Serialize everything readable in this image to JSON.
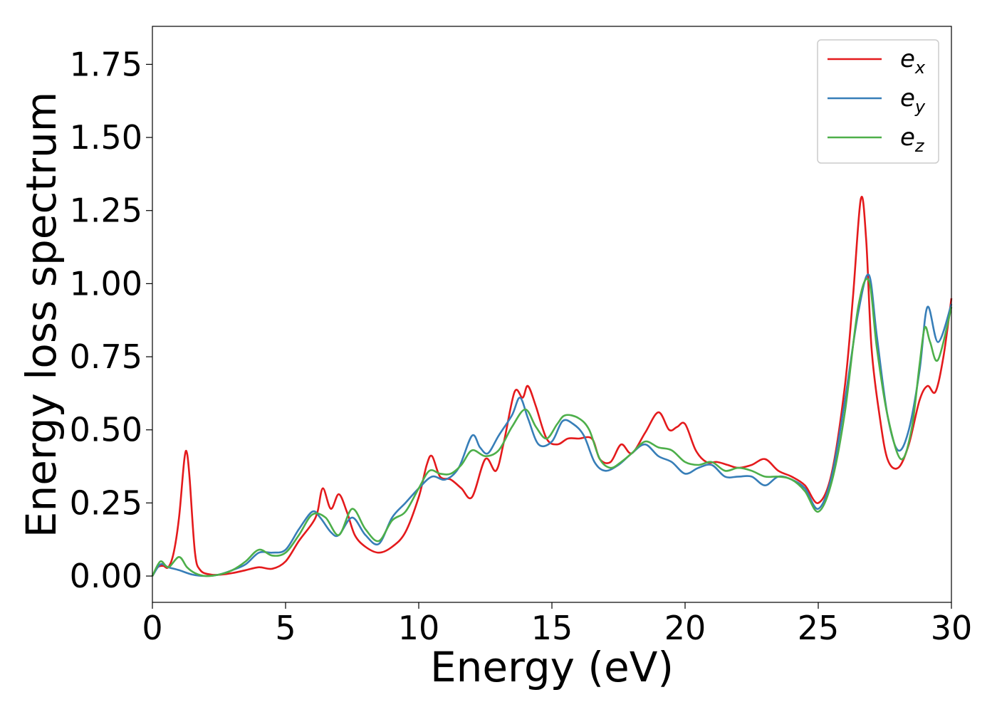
{
  "chart_data": {
    "type": "line",
    "title": "",
    "xlabel": "Energy (eV)",
    "ylabel": "Energy loss spectrum",
    "xlim": [
      0,
      30
    ],
    "ylim": [
      -0.09,
      1.88
    ],
    "x_ticks": [
      "0",
      "5",
      "10",
      "15",
      "20",
      "25",
      "30"
    ],
    "y_ticks": [
      "0.00",
      "0.25",
      "0.50",
      "0.75",
      "1.00",
      "1.25",
      "1.50",
      "1.75"
    ],
    "grid": false,
    "legend_position": "top-right",
    "series": [
      {
        "name": "e_x",
        "legend_base": "e",
        "legend_sub": "x",
        "color": "#e41a1c",
        "points": [
          [
            0,
            0.0
          ],
          [
            0.2,
            0.03
          ],
          [
            0.4,
            0.035
          ],
          [
            0.6,
            0.03
          ],
          [
            0.8,
            0.08
          ],
          [
            1.0,
            0.2
          ],
          [
            1.2,
            0.4
          ],
          [
            1.3,
            0.42
          ],
          [
            1.4,
            0.33
          ],
          [
            1.6,
            0.08
          ],
          [
            1.8,
            0.02
          ],
          [
            2.2,
            0.005
          ],
          [
            2.6,
            0.005
          ],
          [
            3.0,
            0.01
          ],
          [
            3.5,
            0.02
          ],
          [
            4.0,
            0.03
          ],
          [
            4.5,
            0.025
          ],
          [
            5.0,
            0.05
          ],
          [
            5.5,
            0.12
          ],
          [
            6.0,
            0.18
          ],
          [
            6.2,
            0.22
          ],
          [
            6.4,
            0.3
          ],
          [
            6.7,
            0.23
          ],
          [
            7.0,
            0.28
          ],
          [
            7.3,
            0.22
          ],
          [
            7.6,
            0.14
          ],
          [
            8.0,
            0.1
          ],
          [
            8.5,
            0.08
          ],
          [
            9.0,
            0.1
          ],
          [
            9.5,
            0.15
          ],
          [
            10.0,
            0.27
          ],
          [
            10.3,
            0.38
          ],
          [
            10.5,
            0.41
          ],
          [
            10.8,
            0.34
          ],
          [
            11.2,
            0.33
          ],
          [
            11.6,
            0.3
          ],
          [
            12.0,
            0.27
          ],
          [
            12.5,
            0.4
          ],
          [
            12.9,
            0.36
          ],
          [
            13.2,
            0.46
          ],
          [
            13.6,
            0.63
          ],
          [
            13.9,
            0.61
          ],
          [
            14.1,
            0.65
          ],
          [
            14.4,
            0.58
          ],
          [
            14.8,
            0.47
          ],
          [
            15.2,
            0.45
          ],
          [
            15.6,
            0.47
          ],
          [
            16.0,
            0.47
          ],
          [
            16.5,
            0.47
          ],
          [
            16.8,
            0.4
          ],
          [
            17.2,
            0.39
          ],
          [
            17.6,
            0.45
          ],
          [
            18.0,
            0.42
          ],
          [
            18.5,
            0.49
          ],
          [
            19.0,
            0.56
          ],
          [
            19.4,
            0.5
          ],
          [
            19.7,
            0.51
          ],
          [
            20.0,
            0.52
          ],
          [
            20.4,
            0.43
          ],
          [
            20.8,
            0.39
          ],
          [
            21.2,
            0.39
          ],
          [
            21.6,
            0.38
          ],
          [
            22.0,
            0.37
          ],
          [
            22.5,
            0.38
          ],
          [
            23.0,
            0.4
          ],
          [
            23.5,
            0.36
          ],
          [
            24.0,
            0.34
          ],
          [
            24.5,
            0.31
          ],
          [
            25.0,
            0.25
          ],
          [
            25.5,
            0.35
          ],
          [
            26.0,
            0.65
          ],
          [
            26.3,
            0.95
          ],
          [
            26.6,
            1.29
          ],
          [
            26.8,
            1.15
          ],
          [
            27.0,
            0.78
          ],
          [
            27.3,
            0.55
          ],
          [
            27.6,
            0.4
          ],
          [
            28.0,
            0.37
          ],
          [
            28.4,
            0.45
          ],
          [
            28.8,
            0.6
          ],
          [
            29.1,
            0.65
          ],
          [
            29.4,
            0.63
          ],
          [
            29.7,
            0.75
          ],
          [
            30.0,
            0.95
          ]
        ]
      },
      {
        "name": "e_y",
        "legend_base": "e",
        "legend_sub": "y",
        "color": "#377eb8",
        "points": [
          [
            0,
            0.0
          ],
          [
            0.3,
            0.04
          ],
          [
            0.6,
            0.03
          ],
          [
            1.0,
            0.02
          ],
          [
            1.5,
            0.005
          ],
          [
            2.0,
            0.0
          ],
          [
            2.5,
            0.005
          ],
          [
            3.0,
            0.02
          ],
          [
            3.5,
            0.04
          ],
          [
            4.0,
            0.08
          ],
          [
            4.5,
            0.08
          ],
          [
            5.0,
            0.09
          ],
          [
            5.5,
            0.16
          ],
          [
            6.0,
            0.22
          ],
          [
            6.3,
            0.2
          ],
          [
            6.7,
            0.15
          ],
          [
            7.0,
            0.14
          ],
          [
            7.5,
            0.2
          ],
          [
            8.0,
            0.14
          ],
          [
            8.5,
            0.11
          ],
          [
            9.0,
            0.2
          ],
          [
            9.5,
            0.25
          ],
          [
            10.0,
            0.3
          ],
          [
            10.5,
            0.34
          ],
          [
            11.0,
            0.33
          ],
          [
            11.5,
            0.37
          ],
          [
            12.0,
            0.48
          ],
          [
            12.3,
            0.44
          ],
          [
            12.6,
            0.42
          ],
          [
            13.0,
            0.48
          ],
          [
            13.5,
            0.55
          ],
          [
            13.8,
            0.61
          ],
          [
            14.1,
            0.54
          ],
          [
            14.5,
            0.45
          ],
          [
            15.0,
            0.46
          ],
          [
            15.4,
            0.53
          ],
          [
            15.8,
            0.52
          ],
          [
            16.2,
            0.48
          ],
          [
            16.6,
            0.39
          ],
          [
            17.0,
            0.36
          ],
          [
            17.5,
            0.38
          ],
          [
            18.0,
            0.42
          ],
          [
            18.5,
            0.45
          ],
          [
            19.0,
            0.41
          ],
          [
            19.5,
            0.39
          ],
          [
            20.0,
            0.35
          ],
          [
            20.5,
            0.37
          ],
          [
            21.0,
            0.38
          ],
          [
            21.5,
            0.34
          ],
          [
            22.0,
            0.34
          ],
          [
            22.5,
            0.34
          ],
          [
            23.0,
            0.31
          ],
          [
            23.5,
            0.34
          ],
          [
            24.0,
            0.33
          ],
          [
            24.5,
            0.3
          ],
          [
            25.0,
            0.23
          ],
          [
            25.5,
            0.34
          ],
          [
            26.0,
            0.6
          ],
          [
            26.5,
            0.9
          ],
          [
            26.9,
            1.03
          ],
          [
            27.2,
            0.82
          ],
          [
            27.6,
            0.55
          ],
          [
            28.0,
            0.43
          ],
          [
            28.4,
            0.5
          ],
          [
            28.8,
            0.7
          ],
          [
            29.1,
            0.92
          ],
          [
            29.5,
            0.8
          ],
          [
            30.0,
            0.93
          ]
        ]
      },
      {
        "name": "e_z",
        "legend_base": "e",
        "legend_sub": "z",
        "color": "#4daf4a",
        "points": [
          [
            0,
            0.0
          ],
          [
            0.3,
            0.05
          ],
          [
            0.6,
            0.03
          ],
          [
            1.0,
            0.065
          ],
          [
            1.3,
            0.03
          ],
          [
            1.6,
            0.01
          ],
          [
            2.0,
            0.0
          ],
          [
            2.5,
            0.005
          ],
          [
            3.0,
            0.02
          ],
          [
            3.5,
            0.05
          ],
          [
            4.0,
            0.09
          ],
          [
            4.5,
            0.07
          ],
          [
            5.0,
            0.08
          ],
          [
            5.5,
            0.14
          ],
          [
            6.0,
            0.21
          ],
          [
            6.5,
            0.2
          ],
          [
            7.0,
            0.14
          ],
          [
            7.5,
            0.23
          ],
          [
            8.0,
            0.16
          ],
          [
            8.5,
            0.12
          ],
          [
            9.0,
            0.19
          ],
          [
            9.5,
            0.22
          ],
          [
            10.0,
            0.3
          ],
          [
            10.4,
            0.36
          ],
          [
            10.8,
            0.35
          ],
          [
            11.2,
            0.35
          ],
          [
            11.6,
            0.38
          ],
          [
            12.0,
            0.43
          ],
          [
            12.5,
            0.41
          ],
          [
            13.0,
            0.43
          ],
          [
            13.5,
            0.51
          ],
          [
            14.0,
            0.57
          ],
          [
            14.4,
            0.51
          ],
          [
            14.8,
            0.47
          ],
          [
            15.2,
            0.52
          ],
          [
            15.5,
            0.55
          ],
          [
            16.0,
            0.54
          ],
          [
            16.4,
            0.5
          ],
          [
            16.8,
            0.4
          ],
          [
            17.2,
            0.37
          ],
          [
            17.6,
            0.39
          ],
          [
            18.0,
            0.42
          ],
          [
            18.5,
            0.46
          ],
          [
            19.0,
            0.44
          ],
          [
            19.5,
            0.43
          ],
          [
            20.0,
            0.39
          ],
          [
            20.5,
            0.38
          ],
          [
            21.0,
            0.39
          ],
          [
            21.5,
            0.36
          ],
          [
            22.0,
            0.37
          ],
          [
            22.5,
            0.36
          ],
          [
            23.0,
            0.34
          ],
          [
            23.5,
            0.34
          ],
          [
            24.0,
            0.33
          ],
          [
            24.5,
            0.29
          ],
          [
            25.0,
            0.22
          ],
          [
            25.5,
            0.32
          ],
          [
            26.0,
            0.56
          ],
          [
            26.5,
            0.92
          ],
          [
            26.9,
            1.01
          ],
          [
            27.2,
            0.78
          ],
          [
            27.6,
            0.55
          ],
          [
            28.1,
            0.4
          ],
          [
            28.5,
            0.5
          ],
          [
            28.8,
            0.72
          ],
          [
            29.0,
            0.85
          ],
          [
            29.2,
            0.8
          ],
          [
            29.5,
            0.74
          ],
          [
            30.0,
            0.92
          ]
        ]
      }
    ]
  }
}
